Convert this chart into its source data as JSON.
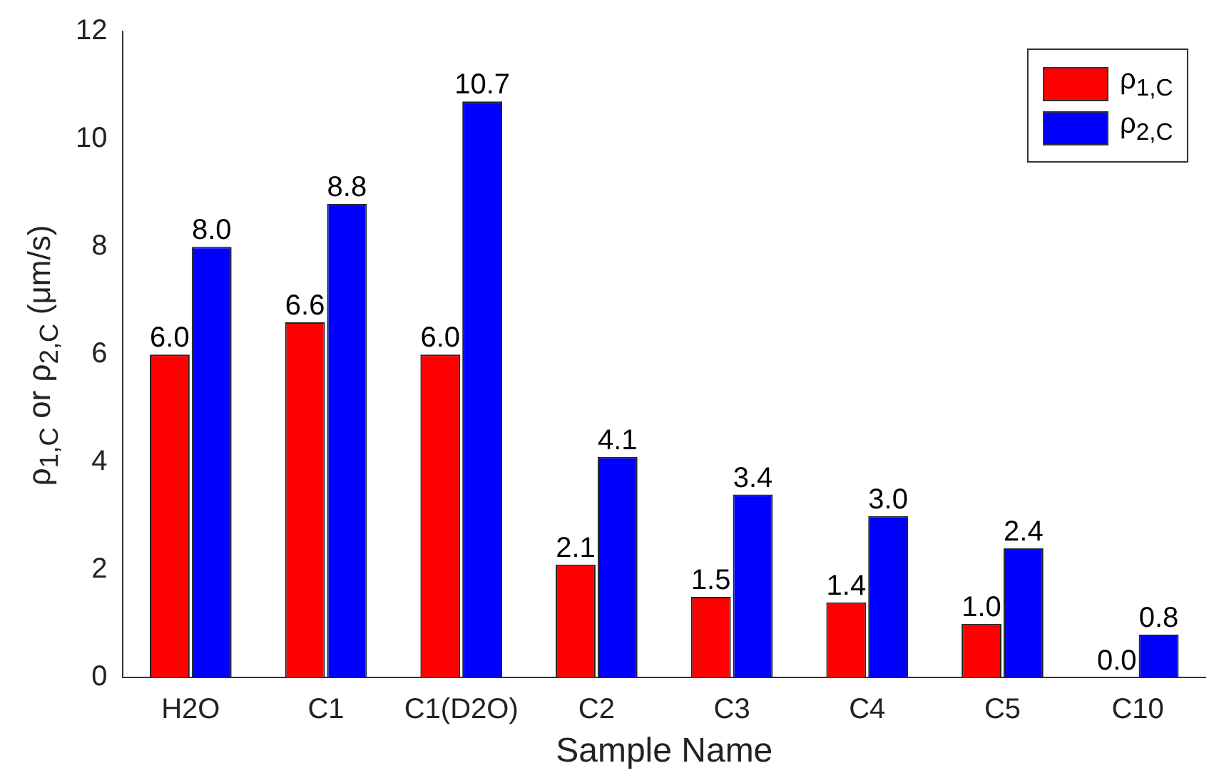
{
  "chart_data": {
    "type": "bar",
    "xlabel": "Sample Name",
    "ylabel": "ρ$_{1,C}$ or ρ$_{2,C}$ (μm/s)",
    "categories": [
      "H2O",
      "C1",
      "C1(D2O)",
      "C2",
      "C3",
      "C4",
      "C5",
      "C10"
    ],
    "series": [
      {
        "name": "ρ$_{1,C}$",
        "color": "#ff0000",
        "values": [
          6.0,
          6.6,
          6.0,
          2.1,
          1.5,
          1.4,
          1.0,
          0.0
        ],
        "value_labels": [
          "6.0",
          "6.6",
          "6.0",
          "2.1",
          "1.5",
          "1.4",
          "1.0",
          "0.0"
        ]
      },
      {
        "name": "ρ$_{2,C}$",
        "color": "#0000ff",
        "values": [
          8.0,
          8.8,
          10.7,
          4.1,
          3.4,
          3.0,
          2.4,
          0.8
        ],
        "value_labels": [
          "8.0",
          "8.8",
          "10.7",
          "4.1",
          "3.4",
          "3.0",
          "2.4",
          "0.8"
        ]
      }
    ],
    "ylim": [
      0,
      12
    ],
    "yticks": [
      0,
      2,
      4,
      6,
      8,
      10,
      12
    ],
    "grid": false,
    "legend": "top right"
  }
}
